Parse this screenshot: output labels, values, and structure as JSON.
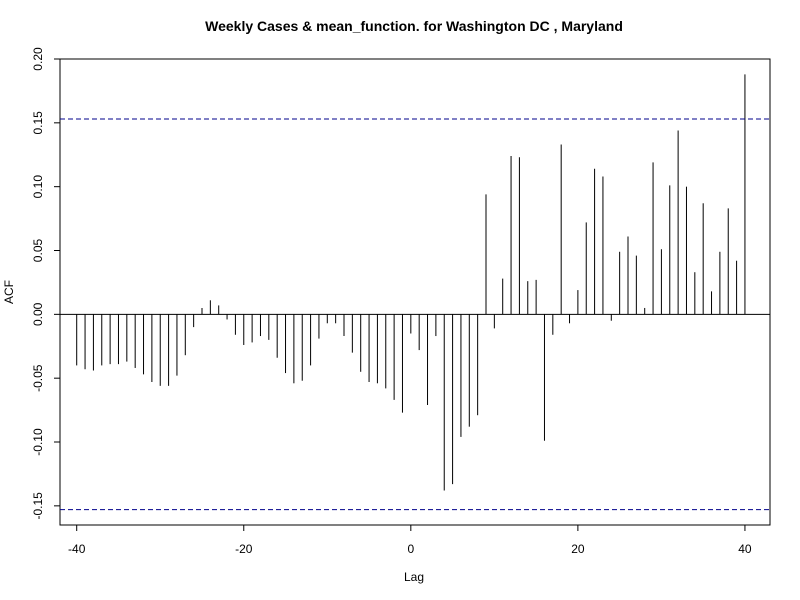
{
  "chart_data": {
    "type": "bar",
    "title": "Weekly Cases & mean_function. for Washington DC , Maryland",
    "xlabel": "Lag",
    "ylabel": "ACF",
    "xlim": [
      -42,
      43
    ],
    "ylim": [
      -0.165,
      0.2
    ],
    "x_ticks": [
      -40,
      -20,
      0,
      20,
      40
    ],
    "y_ticks": [
      -0.15,
      -0.1,
      -0.05,
      0.0,
      0.05,
      0.1,
      0.15,
      0.2
    ],
    "x_tick_labels": [
      "-40",
      "-20",
      "0",
      "20",
      "40"
    ],
    "y_tick_labels": [
      "-0.15",
      "-0.10",
      "-0.05",
      "0.00",
      "0.05",
      "0.10",
      "0.15",
      "0.20"
    ],
    "confidence_bounds": [
      0.153,
      -0.153
    ],
    "colors": {
      "bars": "#000000",
      "bounds": "#00008b",
      "frame": "#000000"
    },
    "lags": [
      -40,
      -39,
      -38,
      -37,
      -36,
      -35,
      -34,
      -33,
      -32,
      -31,
      -30,
      -29,
      -28,
      -27,
      -26,
      -25,
      -24,
      -23,
      -22,
      -21,
      -20,
      -19,
      -18,
      -17,
      -16,
      -15,
      -14,
      -13,
      -12,
      -11,
      -10,
      -9,
      -8,
      -7,
      -6,
      -5,
      -4,
      -3,
      -2,
      -1,
      0,
      1,
      2,
      3,
      4,
      5,
      6,
      7,
      8,
      9,
      10,
      11,
      12,
      13,
      14,
      15,
      16,
      17,
      18,
      19,
      20,
      21,
      22,
      23,
      24,
      25,
      26,
      27,
      28,
      29,
      30,
      31,
      32,
      33,
      34,
      35,
      36,
      37,
      38,
      39,
      40
    ],
    "values": [
      -0.04,
      -0.043,
      -0.044,
      -0.04,
      -0.039,
      -0.039,
      -0.037,
      -0.042,
      -0.047,
      -0.053,
      -0.056,
      -0.056,
      -0.048,
      -0.032,
      -0.01,
      0.005,
      0.011,
      0.007,
      -0.004,
      -0.016,
      -0.024,
      -0.022,
      -0.017,
      -0.02,
      -0.034,
      -0.046,
      -0.054,
      -0.052,
      -0.04,
      -0.019,
      -0.007,
      -0.007,
      -0.017,
      -0.03,
      -0.045,
      -0.053,
      -0.054,
      -0.058,
      -0.067,
      -0.077,
      -0.015,
      -0.028,
      -0.071,
      -0.017,
      -0.138,
      -0.133,
      -0.096,
      -0.088,
      -0.079,
      0.094,
      -0.011,
      0.028,
      0.124,
      0.123,
      0.026,
      0.027,
      -0.099,
      -0.016,
      0.133,
      -0.007,
      0.019,
      0.072,
      0.114,
      0.108,
      -0.005,
      0.049,
      0.061,
      0.046,
      0.005,
      0.119,
      0.051,
      0.101,
      0.144,
      0.1,
      0.033,
      0.087,
      0.018,
      0.049,
      0.083,
      0.042,
      0.188
    ]
  }
}
